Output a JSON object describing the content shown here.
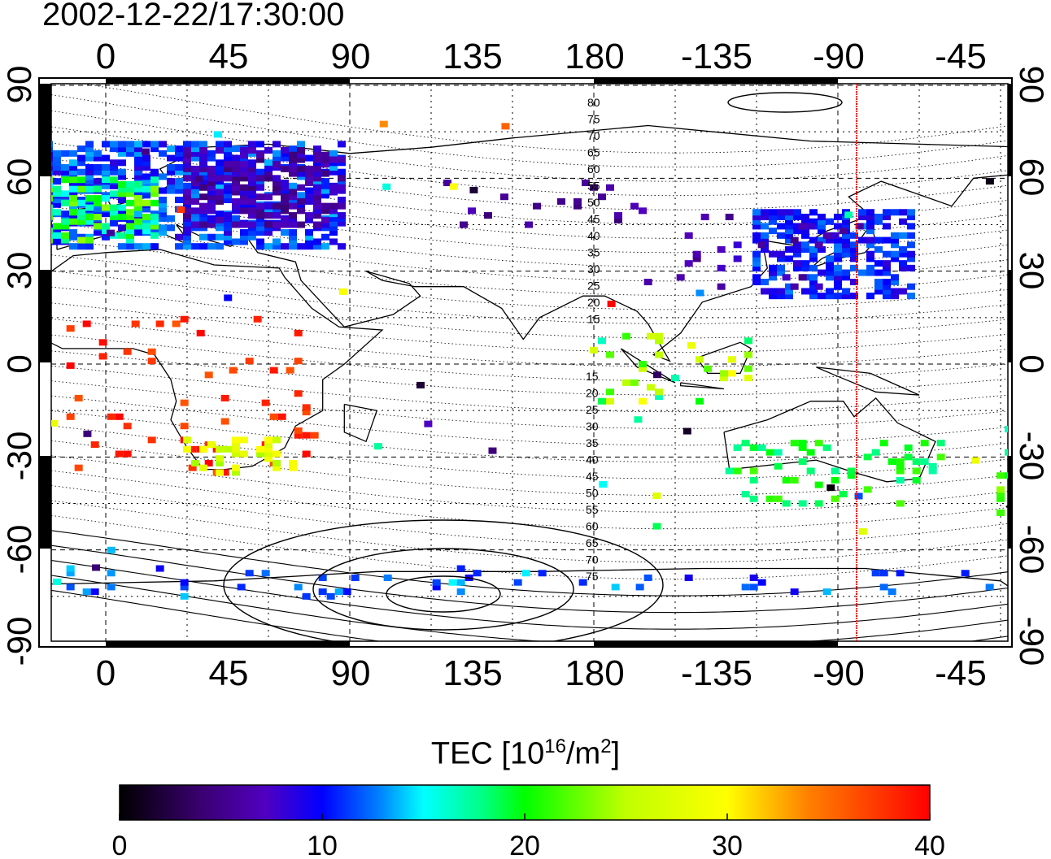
{
  "title": "2002-12-22/17:30:00",
  "map": {
    "lon_tick_labels": [
      "0",
      "45",
      "90",
      "135",
      "180",
      "-135",
      "-90",
      "-45"
    ],
    "lat_tick_labels": [
      "90",
      "60",
      "30",
      "0",
      "-30",
      "-60",
      "-90"
    ],
    "magnetic_lat_labels_north": [
      "80",
      "75",
      "70",
      "65",
      "60",
      "55",
      "50",
      "45",
      "40",
      "35",
      "30",
      "25",
      "20",
      "15"
    ],
    "magnetic_lat_labels_south": [
      "15",
      "20",
      "25",
      "30",
      "35",
      "40",
      "45",
      "50",
      "55",
      "60",
      "65",
      "70",
      "75"
    ],
    "marker_line_lon": -85,
    "marker_line_color": "#ff0000"
  },
  "colorbar": {
    "label_main": "TEC  [10",
    "label_sup1": "16",
    "label_mid": "/m",
    "label_sup2": "2",
    "label_end": "]",
    "ticks": [
      "0",
      "10",
      "20",
      "30",
      "40"
    ],
    "range": [
      0,
      40
    ],
    "colors": [
      "#000000",
      "#5a00a0",
      "#0000ff",
      "#00ffff",
      "#00ff00",
      "#ffff00",
      "#ff8000",
      "#ff0000"
    ]
  }
}
